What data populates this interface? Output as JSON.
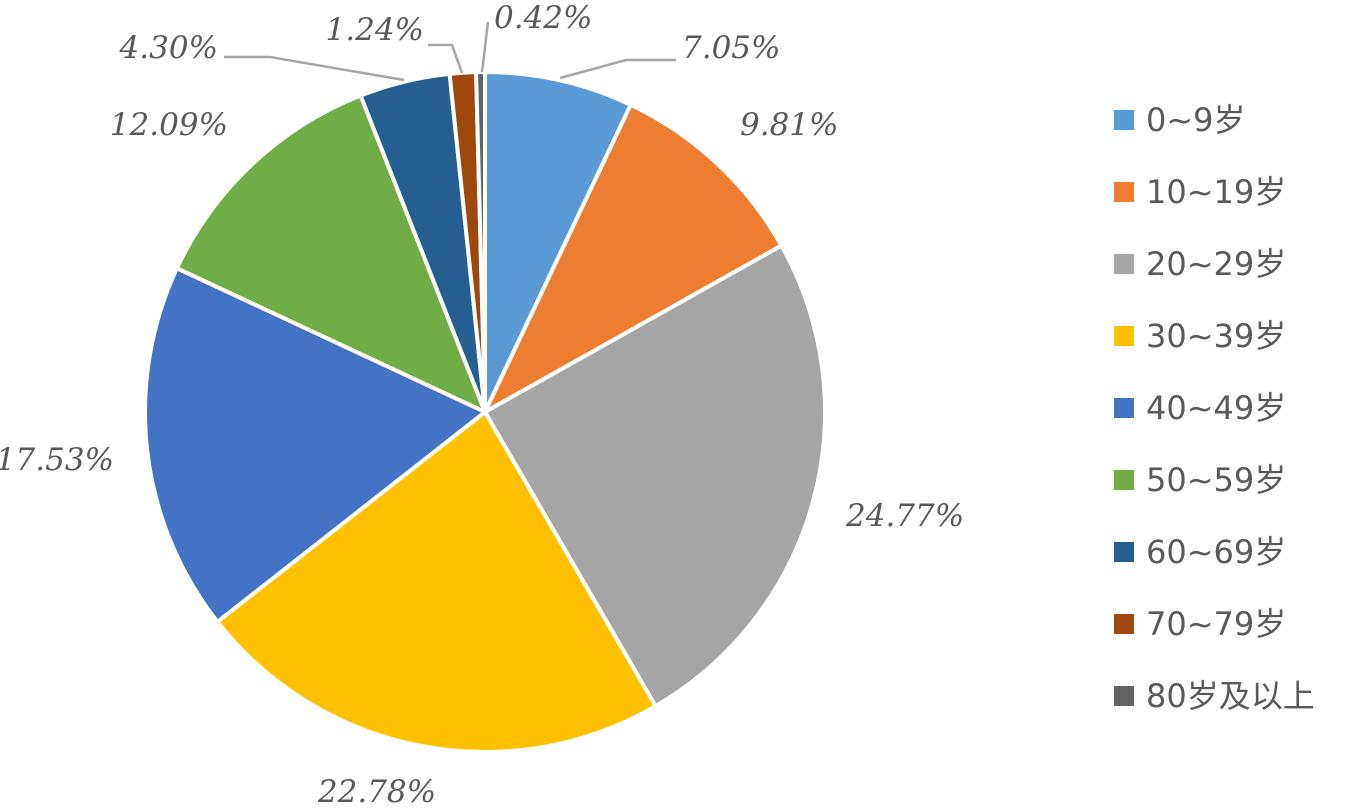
{
  "chart_data": {
    "type": "pie",
    "title": "",
    "categories": [
      "0~9岁",
      "10~19岁",
      "20~29岁",
      "30~39岁",
      "40~49岁",
      "50~59岁",
      "60~69岁",
      "70~79岁",
      "80岁及以上"
    ],
    "values": [
      7.05,
      9.81,
      24.77,
      22.78,
      17.53,
      12.09,
      4.3,
      1.24,
      0.42
    ],
    "labels": [
      "7.05%",
      "9.81%",
      "24.77%",
      "22.78%",
      "17.53%",
      "12.09%",
      "4.30%",
      "1.24%",
      "0.42%"
    ],
    "colors": [
      "#5b9bd5",
      "#ed7d31",
      "#a5a5a5",
      "#ffc000",
      "#4472c4",
      "#70ad47",
      "#255e91",
      "#9e480e",
      "#636363"
    ],
    "legend_position": "right",
    "start_angle_deg": 0,
    "direction": "clockwise"
  }
}
